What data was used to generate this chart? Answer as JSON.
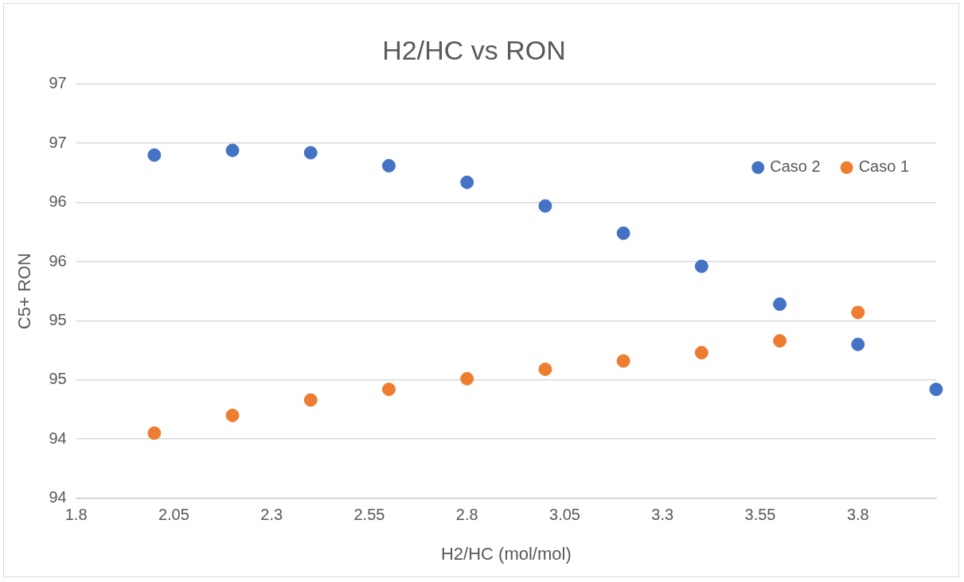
{
  "chart_data": {
    "type": "scatter",
    "title": "H2/HC vs RON",
    "xlabel": "H2/HC (mol/mol)",
    "ylabel": "C5+ RON",
    "x": [
      2.0,
      2.2,
      2.4,
      2.6,
      2.8,
      3.0,
      3.2,
      3.4,
      3.6,
      3.8,
      4.0
    ],
    "series": [
      {
        "name": "Caso 2",
        "color": "#4472c4",
        "values": [
          96.7,
          96.74,
          96.72,
          96.61,
          96.47,
          96.27,
          96.04,
          95.76,
          95.44,
          95.1,
          94.72
        ]
      },
      {
        "name": "Caso 1",
        "color": "#ed7d31",
        "values": [
          94.35,
          94.5,
          94.63,
          94.72,
          94.81,
          94.89,
          94.96,
          95.03,
          95.13,
          95.37,
          null
        ]
      }
    ],
    "xlim": [
      1.8,
      4.0
    ],
    "xticks": [
      1.8,
      2.05,
      2.3,
      2.55,
      2.8,
      3.05,
      3.3,
      3.55,
      3.8
    ],
    "ylim": [
      93.8,
      97.3
    ],
    "yticks": [
      {
        "value": 93.8,
        "label": "94"
      },
      {
        "value": 94.3,
        "label": "94"
      },
      {
        "value": 94.8,
        "label": "95"
      },
      {
        "value": 95.3,
        "label": "95"
      },
      {
        "value": 95.8,
        "label": "96"
      },
      {
        "value": 96.3,
        "label": "96"
      },
      {
        "value": 96.8,
        "label": "97"
      },
      {
        "value": 97.3,
        "label": "97"
      }
    ],
    "grid": "y",
    "legend": "top right",
    "marker": "circle"
  }
}
